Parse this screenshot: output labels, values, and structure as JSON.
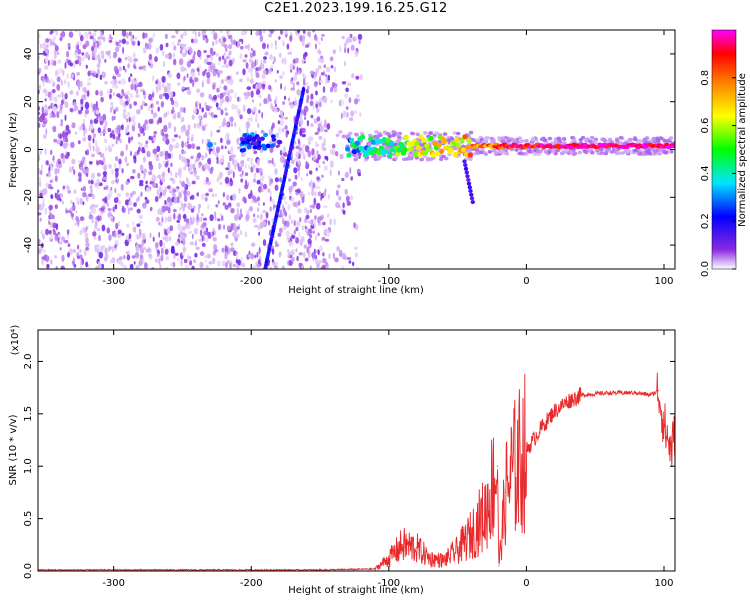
{
  "chart_data": [
    {
      "type": "heatmap",
      "title": "C2E1.2023.199.16.25.G12",
      "xlabel": "Height of straight line (km)",
      "ylabel": "Frequency (Hz)",
      "xlim": [
        -355,
        108
      ],
      "ylim": [
        -50,
        50
      ],
      "x_ticks": [
        -300,
        -200,
        -100,
        0,
        100
      ],
      "y_ticks": [
        -40,
        -20,
        0,
        20,
        40
      ],
      "colorbar": {
        "label": "Normalized spectral amplitude",
        "range": [
          0,
          1
        ],
        "ticks": [
          "0.0",
          "0.2",
          "0.4",
          "0.6",
          "0.8"
        ],
        "colors": [
          "#ffffff",
          "#8a2be2",
          "#0000ff",
          "#00e5ff",
          "#00ff00",
          "#ffff00",
          "#ff8000",
          "#ff0000",
          "#ff00ff"
        ]
      },
      "features": [
        {
          "name": "noise",
          "x_range": [
            -355,
            -120
          ],
          "freq_range": [
            -50,
            50
          ],
          "amplitude": 0.1
        },
        {
          "name": "signal",
          "x_range": [
            -130,
            108
          ],
          "frequency": 1.5,
          "amplitude_start": 0.35,
          "amplitude_end": 0.95
        },
        {
          "name": "streak",
          "x_start": -190,
          "x_end": -162,
          "freq_start": -50,
          "freq_end": 25
        },
        {
          "name": "cluster",
          "x_center": -193,
          "freq": 3
        }
      ]
    },
    {
      "type": "line",
      "xlabel": "Height of straight line (km)",
      "ylabel": "SNR (10 * v/v)",
      "multiplier": "(x10⁴)",
      "xlim": [
        -355,
        108
      ],
      "ylim": [
        0,
        2.3
      ],
      "x_ticks": [
        -300,
        -200,
        -100,
        0,
        100
      ],
      "y_ticks": [
        "0.0",
        "0.5",
        "1.0",
        "1.5",
        "2.0"
      ],
      "color": "#e8282a",
      "series": [
        {
          "x": [
            -355,
            -300,
            -250,
            -200,
            -150,
            -110,
            -100,
            -90,
            -80,
            -70,
            -60,
            -50,
            -40,
            -30,
            -25,
            -21,
            -20,
            -15,
            -10,
            0,
            10,
            20,
            30,
            40,
            60,
            80,
            90,
            96,
            100,
            105,
            108
          ],
          "y": [
            0.01,
            0.01,
            0.01,
            0.01,
            0.01,
            0.02,
            0.12,
            0.25,
            0.22,
            0.12,
            0.1,
            0.2,
            0.35,
            0.55,
            0.8,
            1.0,
            0.05,
            0.75,
            0.95,
            1.15,
            1.35,
            1.52,
            1.62,
            1.68,
            1.7,
            1.7,
            1.68,
            1.72,
            1.4,
            1.15,
            1.3
          ]
        }
      ]
    }
  ]
}
